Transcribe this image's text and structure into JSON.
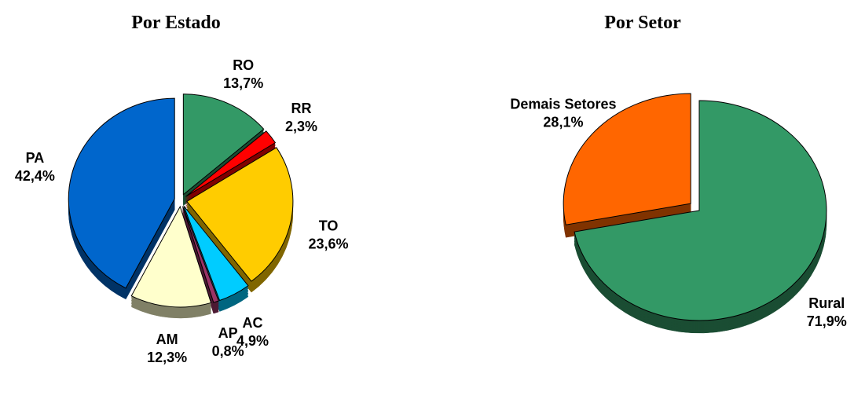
{
  "chart_data": [
    {
      "type": "pie",
      "title": "Por Estado",
      "categories": [
        "RO",
        "RR",
        "TO",
        "AC",
        "AP",
        "AM",
        "PA"
      ],
      "values": [
        13.7,
        2.3,
        23.6,
        4.9,
        0.8,
        12.3,
        42.4
      ],
      "value_labels": [
        "13,7%",
        "2,3%",
        "23,6%",
        "4,9%",
        "0,8%",
        "12,3%",
        "42,4%"
      ],
      "colors": [
        "#339966",
        "#ff0000",
        "#ffcc00",
        "#00ccff",
        "#993366",
        "#ffffcc",
        "#0066cc"
      ]
    },
    {
      "type": "pie",
      "title": "Por Setor",
      "categories": [
        "Rural",
        "Demais Setores"
      ],
      "values": [
        71.9,
        28.1
      ],
      "value_labels": [
        "71,9%",
        "28,1%"
      ],
      "colors": [
        "#339966",
        "#ff6600"
      ]
    }
  ]
}
